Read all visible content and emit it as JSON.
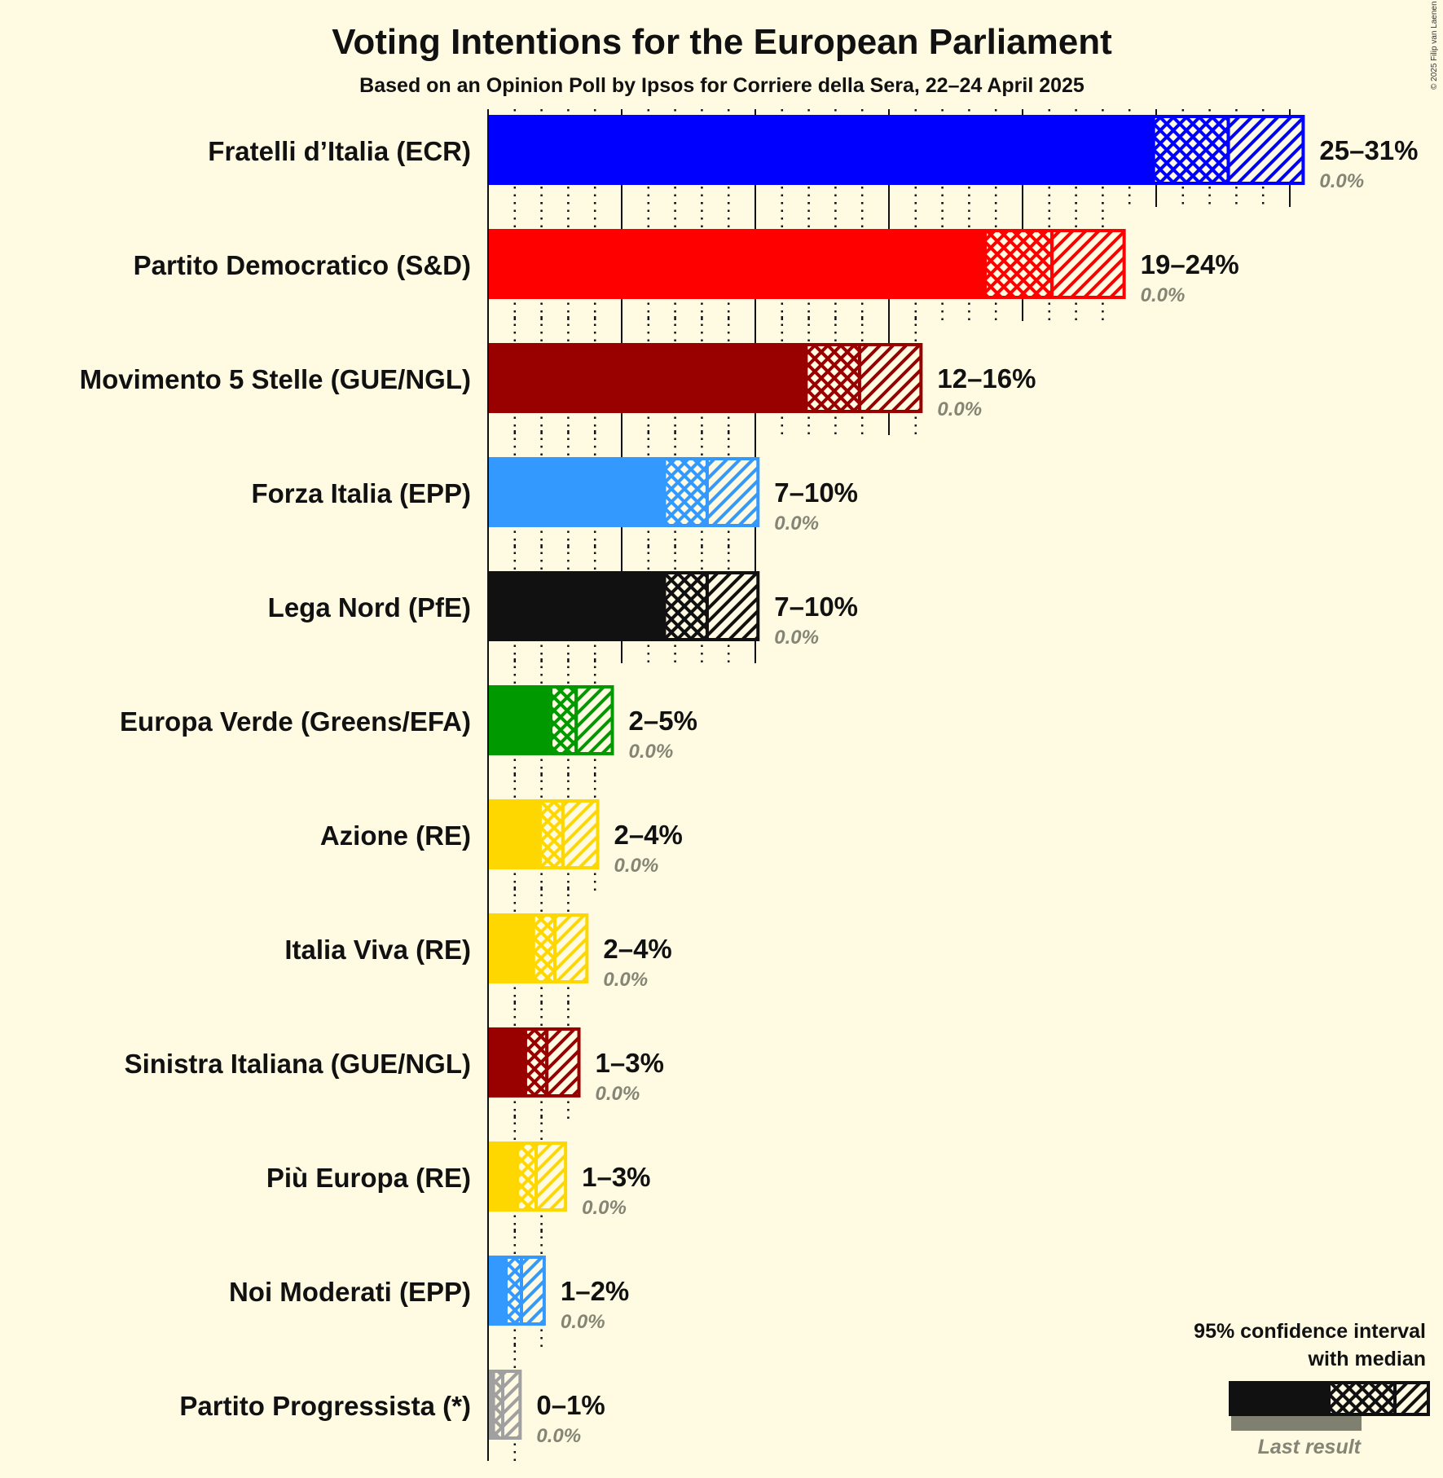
{
  "title": "Voting Intentions for the European Parliament",
  "subtitle": "Based on an Opinion Poll by Ipsos for Corriere della Sera, 22–24 April 2025",
  "copyright": "© 2025 Filip van Laenen",
  "legend": {
    "line1": "95% confidence interval",
    "line2": "with median",
    "last_result": "Last result"
  },
  "colors": {
    "background": "#fffbe3",
    "text": "#111111",
    "last_result_gray": "#808070",
    "axis": "#111111"
  },
  "chart_data": {
    "type": "bar",
    "orientation": "horizontal",
    "title": "Voting Intentions for the European Parliament",
    "subtitle": "Based on an Opinion Poll by Ipsos for Corriere della Sera, 22–24 April 2025",
    "xlabel": "",
    "ylabel": "",
    "xlim": [
      0,
      31
    ],
    "grid": {
      "major_every": 5,
      "minor_every": 1,
      "style_minor": "dotted"
    },
    "legend_position": "bottom-right",
    "categories": [
      "Fratelli d’Italia (ECR)",
      "Partito Democratico (S&D)",
      "Movimento 5 Stelle (GUE/NGL)",
      "Forza Italia (EPP)",
      "Lega Nord (PfE)",
      "Europa Verde (Greens/EFA)",
      "Azione (RE)",
      "Italia Viva (RE)",
      "Sinistra Italiana (GUE/NGL)",
      "Più Europa (RE)",
      "Noi Moderati (EPP)",
      "Partito Progressista (*)"
    ],
    "series": [
      {
        "name": "CI low (95%)",
        "values": [
          24.9,
          18.6,
          11.9,
          6.6,
          6.6,
          2.35,
          1.95,
          1.7,
          1.4,
          1.1,
          0.67,
          0.2
        ]
      },
      {
        "name": "Median",
        "values": [
          27.7,
          21.1,
          13.9,
          8.2,
          8.2,
          3.3,
          2.8,
          2.5,
          2.2,
          1.8,
          1.25,
          0.55
        ]
      },
      {
        "name": "CI high (95%)",
        "values": [
          30.5,
          23.8,
          16.2,
          10.1,
          10.1,
          4.65,
          4.1,
          3.7,
          3.4,
          2.9,
          2.1,
          1.2
        ]
      },
      {
        "name": "Last result",
        "values": [
          0.0,
          0.0,
          0.0,
          0.0,
          0.0,
          0.0,
          0.0,
          0.0,
          0.0,
          0.0,
          0.0,
          0.0
        ]
      }
    ],
    "range_labels": [
      "25–31%",
      "19–24%",
      "12–16%",
      "7–10%",
      "7–10%",
      "2–5%",
      "2–4%",
      "2–4%",
      "1–3%",
      "1–3%",
      "1–2%",
      "0–1%"
    ],
    "last_result_labels": [
      "0.0%",
      "0.0%",
      "0.0%",
      "0.0%",
      "0.0%",
      "0.0%",
      "0.0%",
      "0.0%",
      "0.0%",
      "0.0%",
      "0.0%",
      "0.0%"
    ],
    "bar_colors": [
      "#0000ff",
      "#ff0000",
      "#990000",
      "#3399ff",
      "#111111",
      "#009900",
      "#ffd700",
      "#ffd700",
      "#990000",
      "#ffd700",
      "#3399ff",
      "#a0a0a0"
    ]
  }
}
